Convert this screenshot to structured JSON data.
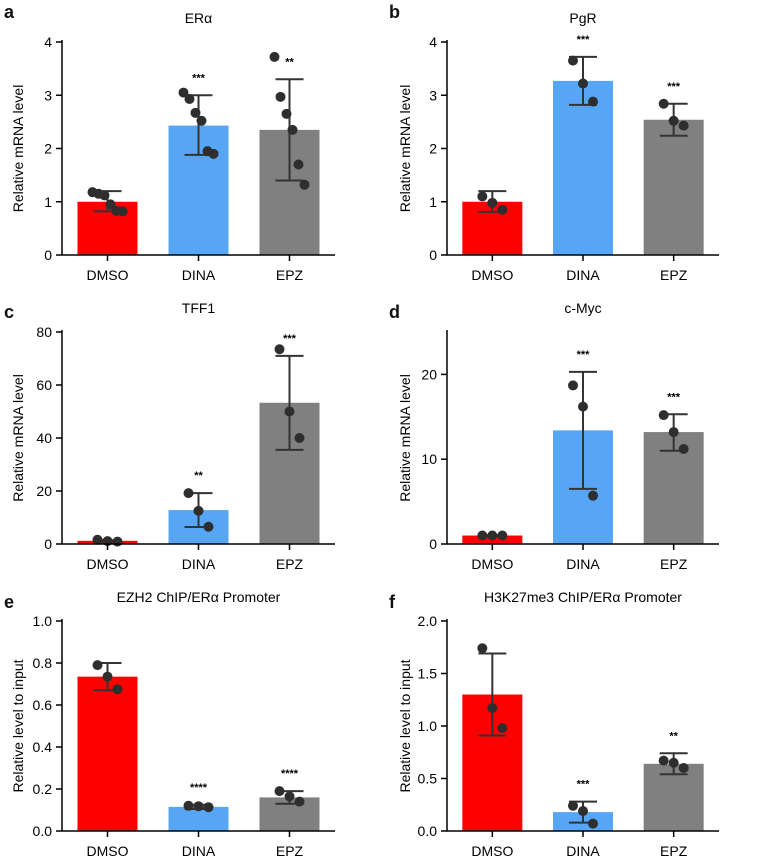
{
  "colors": {
    "dmso": "#ff0000",
    "dina": "#56a6f5",
    "epz": "#808080",
    "dots": "#2e2e2e",
    "axis": "#000000"
  },
  "chart_data": [
    {
      "panel": "a",
      "type": "bar",
      "title": "ERα",
      "ylabel": "Relative mRNA level",
      "categories": [
        "DMSO",
        "DINA",
        "EPZ"
      ],
      "ylim": [
        0,
        4
      ],
      "yticks": [
        0,
        1,
        2,
        3,
        4
      ],
      "values": [
        1.0,
        2.43,
        2.35
      ],
      "err_low": [
        0.82,
        1.88,
        1.4
      ],
      "err_high": [
        1.2,
        3.0,
        3.3
      ],
      "points": [
        [
          1.18,
          1.15,
          1.12,
          0.95,
          0.83,
          0.82
        ],
        [
          3.05,
          2.93,
          2.67,
          2.52,
          1.95,
          1.9
        ],
        [
          3.72,
          2.97,
          2.65,
          2.35,
          1.7,
          1.32
        ]
      ],
      "significance": [
        "",
        "***",
        "**"
      ]
    },
    {
      "panel": "b",
      "type": "bar",
      "title": "PgR",
      "ylabel": "Relative mRNA level",
      "categories": [
        "DMSO",
        "DINA",
        "EPZ"
      ],
      "ylim": [
        0,
        4
      ],
      "yticks": [
        0,
        1,
        2,
        3,
        4
      ],
      "values": [
        1.0,
        3.27,
        2.54
      ],
      "err_low": [
        0.81,
        2.82,
        2.24
      ],
      "err_high": [
        1.2,
        3.72,
        2.84
      ],
      "points": [
        [
          1.1,
          0.98,
          0.85
        ],
        [
          3.65,
          3.22,
          2.88
        ],
        [
          2.84,
          2.52,
          2.43
        ]
      ],
      "significance": [
        "",
        "***",
        "***"
      ]
    },
    {
      "panel": "c",
      "type": "bar",
      "title": "TFF1",
      "ylabel": "Relative mRNA level",
      "categories": [
        "DMSO",
        "DINA",
        "EPZ"
      ],
      "ylim": [
        0,
        80
      ],
      "yticks": [
        0,
        20,
        40,
        60,
        80
      ],
      "values": [
        1.2,
        12.8,
        53.3
      ],
      "err_low": [
        1.0,
        6.4,
        35.5
      ],
      "err_high": [
        1.4,
        19.2,
        71.0
      ],
      "points": [
        [
          1.6,
          1.1,
          0.9
        ],
        [
          19.2,
          12.5,
          6.5
        ],
        [
          73.5,
          50.0,
          40.0
        ]
      ],
      "significance": [
        "",
        "**",
        "***"
      ]
    },
    {
      "panel": "d",
      "type": "bar",
      "title": "c-Myc",
      "ylabel": "Relative mRNA level",
      "categories": [
        "DMSO",
        "DINA",
        "EPZ"
      ],
      "ylim": [
        0,
        25
      ],
      "yticks": [
        0,
        10,
        20
      ],
      "values": [
        1.0,
        13.4,
        13.2
      ],
      "err_low": [
        0.95,
        6.5,
        11.0
      ],
      "err_high": [
        1.05,
        20.3,
        15.3
      ],
      "points": [
        [
          1.0,
          1.0,
          1.0
        ],
        [
          18.7,
          16.2,
          5.7
        ],
        [
          15.2,
          13.2,
          11.2
        ]
      ],
      "significance": [
        "",
        "***",
        "***"
      ]
    },
    {
      "panel": "e",
      "type": "bar",
      "title": "EZH2 ChIP/ERα Promoter",
      "ylabel": "Relative level to input",
      "categories": [
        "DMSO",
        "DINA",
        "EPZ"
      ],
      "ylim": [
        0,
        1.0
      ],
      "yticks": [
        0,
        0.2,
        0.4,
        0.6,
        0.8,
        1.0
      ],
      "ytick_labels": [
        "0.0",
        "0.2",
        "0.4",
        "0.6",
        "0.8",
        "1.0"
      ],
      "values": [
        0.735,
        0.115,
        0.16
      ],
      "err_low": [
        0.67,
        0.105,
        0.13
      ],
      "err_high": [
        0.8,
        0.125,
        0.19
      ],
      "points": [
        [
          0.79,
          0.735,
          0.675
        ],
        [
          0.12,
          0.118,
          0.113
        ],
        [
          0.19,
          0.165,
          0.14
        ]
      ],
      "significance": [
        "",
        "****",
        "****"
      ]
    },
    {
      "panel": "f",
      "type": "bar",
      "title": "H3K27me3 ChIP/ERα Promoter",
      "ylabel": "Relative  level to input",
      "categories": [
        "DMSO",
        "DINA",
        "EPZ"
      ],
      "ylim": [
        0,
        2.0
      ],
      "yticks": [
        0,
        0.5,
        1.0,
        1.5,
        2.0
      ],
      "ytick_labels": [
        "0.0",
        "0.5",
        "1.0",
        "1.5",
        "2.0"
      ],
      "values": [
        1.3,
        0.18,
        0.64
      ],
      "err_low": [
        0.91,
        0.08,
        0.54
      ],
      "err_high": [
        1.69,
        0.28,
        0.74
      ],
      "points": [
        [
          1.74,
          1.17,
          0.98
        ],
        [
          0.24,
          0.19,
          0.07
        ],
        [
          0.67,
          0.65,
          0.6
        ]
      ],
      "significance": [
        "",
        "***",
        "**"
      ]
    }
  ]
}
